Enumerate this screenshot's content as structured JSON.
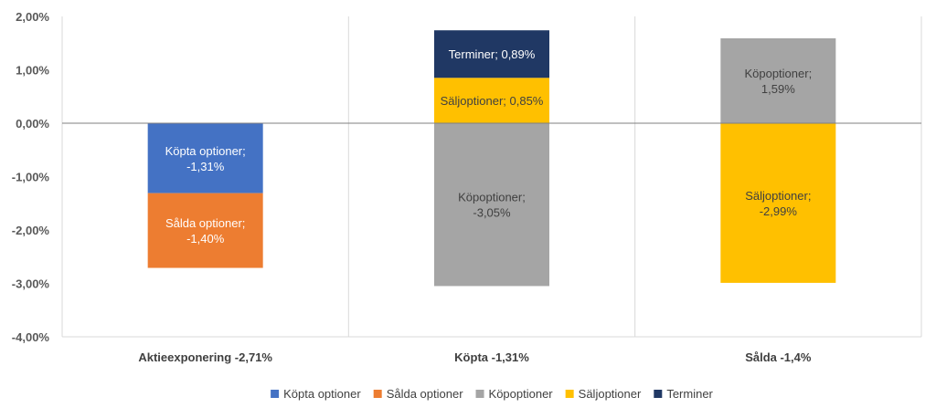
{
  "chart_data": {
    "type": "bar",
    "stacked": true,
    "ylim": [
      -4,
      2
    ],
    "yticks": [
      -4,
      -3,
      -2,
      -1,
      0,
      1,
      2
    ],
    "ytick_labels": [
      "-4,00%",
      "-3,00%",
      "-2,00%",
      "-1,00%",
      "0,00%",
      "1,00%",
      "2,00%"
    ],
    "grid": "vertical category separators",
    "categories": [
      "Aktieexponering -2,71%",
      "Köpta -1,31%",
      "Sålda -1,4%"
    ],
    "series": [
      {
        "name": "Köpta optioner",
        "color": "#4472C4",
        "label_color": "#ffffff",
        "values": [
          -1.31,
          null,
          null
        ],
        "labels": [
          "Köpta optioner;\n-1,31%",
          "",
          ""
        ]
      },
      {
        "name": "Sålda optioner",
        "color": "#ED7D31",
        "label_color": "#ffffff",
        "values": [
          -1.4,
          null,
          null
        ],
        "labels": [
          "Sålda optioner;\n-1,40%",
          "",
          ""
        ]
      },
      {
        "name": "Köpoptioner",
        "color": "#A5A5A5",
        "label_color": "#404040",
        "values": [
          null,
          -3.05,
          1.59
        ],
        "labels": [
          "",
          "Köpoptioner;\n-3,05%",
          "Köpoptioner;\n1,59%"
        ]
      },
      {
        "name": "Säljoptioner",
        "color": "#FFC000",
        "label_color": "#404040",
        "values": [
          null,
          0.85,
          -2.99
        ],
        "labels": [
          "",
          "Säljoptioner; 0,85%",
          "Säljoptioner;\n-2,99%"
        ]
      },
      {
        "name": "Terminer",
        "color": "#203864",
        "label_color": "#ffffff",
        "values": [
          null,
          0.89,
          null
        ],
        "labels": [
          "",
          "Terminer; 0,89%",
          ""
        ]
      }
    ],
    "legend": "bottom"
  }
}
